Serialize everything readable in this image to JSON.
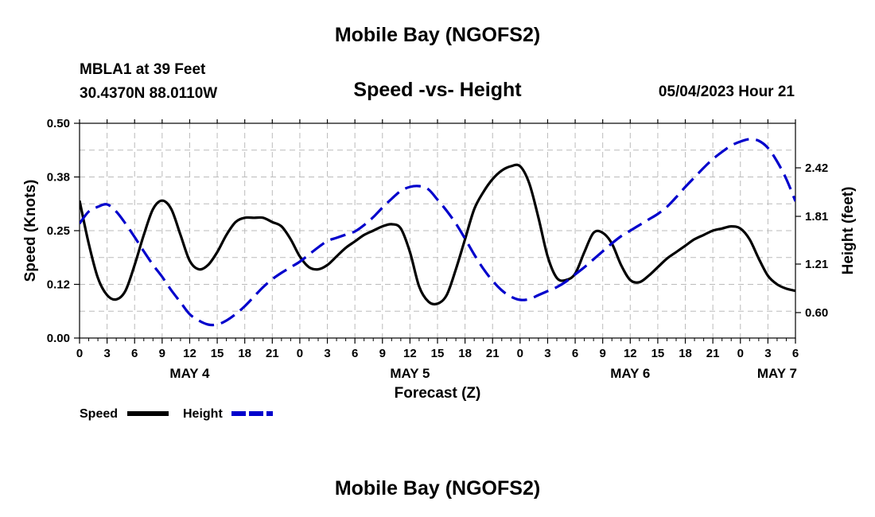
{
  "header": {
    "title": "Mobile Bay (NGOFS2)",
    "station_line1": "MBLA1 at 39 Feet",
    "station_line2": "30.4370N  88.0110W",
    "timestamp": "05/04/2023 Hour 21"
  },
  "footer": {
    "title": "Mobile Bay (NGOFS2)"
  },
  "chart_data": {
    "type": "line",
    "title": "Speed -vs- Height",
    "xlabel": "Forecast (Z)",
    "ylabel_left": "Speed (Knots)",
    "ylabel_right": "Height (feet)",
    "x_unit": "forecast hour (0 = May 4 00Z)",
    "xlim": [
      0,
      78
    ],
    "ylim_left": [
      0.0,
      0.5
    ],
    "ylim_right": [
      0.28,
      2.98
    ],
    "x_tick_labels": [
      "0",
      "3",
      "6",
      "9",
      "12",
      "15",
      "18",
      "21",
      "0",
      "3",
      "6",
      "9",
      "12",
      "15",
      "18",
      "21",
      "0",
      "3",
      "6",
      "9",
      "12",
      "15",
      "18",
      "21",
      "0",
      "3",
      "6"
    ],
    "day_labels": [
      {
        "hour": 12,
        "label": "MAY 4"
      },
      {
        "hour": 36,
        "label": "MAY 5"
      },
      {
        "hour": 60,
        "label": "MAY 6"
      },
      {
        "hour": 76,
        "label": "MAY 7"
      }
    ],
    "y_left_ticks": [
      "0.00",
      "0.12",
      "0.25",
      "0.38",
      "0.50"
    ],
    "y_left_tick_values": [
      0.0,
      0.125,
      0.25,
      0.375,
      0.5
    ],
    "y_right_ticks": [
      "0.60",
      "1.21",
      "1.81",
      "2.42"
    ],
    "y_right_tick_values": [
      0.6,
      1.21,
      1.81,
      2.42
    ],
    "grid": true,
    "legend_position": "bottom-left",
    "series": [
      {
        "name": "Speed",
        "axis": "left",
        "color": "#000000",
        "style": "solid",
        "x": [
          0,
          1,
          2,
          3,
          4,
          5,
          6,
          7,
          8,
          9,
          10,
          11,
          12,
          13,
          14,
          15,
          16,
          17,
          18,
          19,
          20,
          21,
          22,
          23,
          24,
          25,
          26,
          27,
          28,
          29,
          30,
          31,
          32,
          33,
          34,
          35,
          36,
          37,
          38,
          39,
          40,
          41,
          42,
          43,
          44,
          45,
          46,
          47,
          48,
          49,
          50,
          51,
          52,
          53,
          54,
          55,
          56,
          57,
          58,
          59,
          60,
          61,
          62,
          63,
          64,
          65,
          66,
          67,
          68,
          69,
          70,
          71,
          72,
          73,
          74,
          75,
          76,
          77,
          78
        ],
        "values": [
          0.32,
          0.22,
          0.14,
          0.1,
          0.09,
          0.11,
          0.17,
          0.24,
          0.3,
          0.32,
          0.3,
          0.24,
          0.18,
          0.16,
          0.17,
          0.2,
          0.24,
          0.27,
          0.28,
          0.28,
          0.28,
          0.27,
          0.26,
          0.23,
          0.19,
          0.165,
          0.16,
          0.17,
          0.19,
          0.21,
          0.225,
          0.24,
          0.25,
          0.26,
          0.265,
          0.255,
          0.2,
          0.12,
          0.085,
          0.08,
          0.1,
          0.16,
          0.23,
          0.3,
          0.34,
          0.37,
          0.39,
          0.4,
          0.4,
          0.36,
          0.28,
          0.19,
          0.14,
          0.135,
          0.15,
          0.2,
          0.245,
          0.245,
          0.22,
          0.17,
          0.135,
          0.13,
          0.145,
          0.165,
          0.185,
          0.2,
          0.215,
          0.23,
          0.24,
          0.25,
          0.255,
          0.26,
          0.255,
          0.23,
          0.185,
          0.145,
          0.125,
          0.115,
          0.11
        ]
      },
      {
        "name": "Height",
        "axis": "right",
        "color": "#0000cc",
        "style": "dashed",
        "x": [
          0,
          1,
          2,
          3,
          4,
          5,
          6,
          7,
          8,
          9,
          10,
          11,
          12,
          13,
          14,
          15,
          16,
          17,
          18,
          19,
          20,
          21,
          22,
          23,
          24,
          25,
          26,
          27,
          28,
          29,
          30,
          31,
          32,
          33,
          34,
          35,
          36,
          37,
          38,
          39,
          40,
          41,
          42,
          43,
          44,
          45,
          46,
          47,
          48,
          49,
          50,
          51,
          52,
          53,
          54,
          55,
          56,
          57,
          58,
          59,
          60,
          61,
          62,
          63,
          64,
          65,
          66,
          67,
          68,
          69,
          70,
          71,
          72,
          73,
          74,
          75,
          76,
          77,
          78
        ],
        "values": [
          1.72,
          1.87,
          1.93,
          1.96,
          1.87,
          1.72,
          1.55,
          1.37,
          1.2,
          1.05,
          0.88,
          0.73,
          0.58,
          0.5,
          0.45,
          0.45,
          0.5,
          0.58,
          0.68,
          0.8,
          0.92,
          1.02,
          1.1,
          1.17,
          1.24,
          1.33,
          1.42,
          1.5,
          1.54,
          1.58,
          1.62,
          1.7,
          1.8,
          1.92,
          2.03,
          2.13,
          2.18,
          2.19,
          2.15,
          2.02,
          1.88,
          1.72,
          1.53,
          1.33,
          1.15,
          1.0,
          0.88,
          0.8,
          0.76,
          0.77,
          0.82,
          0.87,
          0.92,
          0.99,
          1.08,
          1.17,
          1.27,
          1.37,
          1.47,
          1.56,
          1.63,
          1.7,
          1.77,
          1.84,
          1.93,
          2.05,
          2.18,
          2.3,
          2.42,
          2.53,
          2.62,
          2.7,
          2.75,
          2.78,
          2.76,
          2.67,
          2.5,
          2.28,
          2.0
        ]
      }
    ]
  }
}
